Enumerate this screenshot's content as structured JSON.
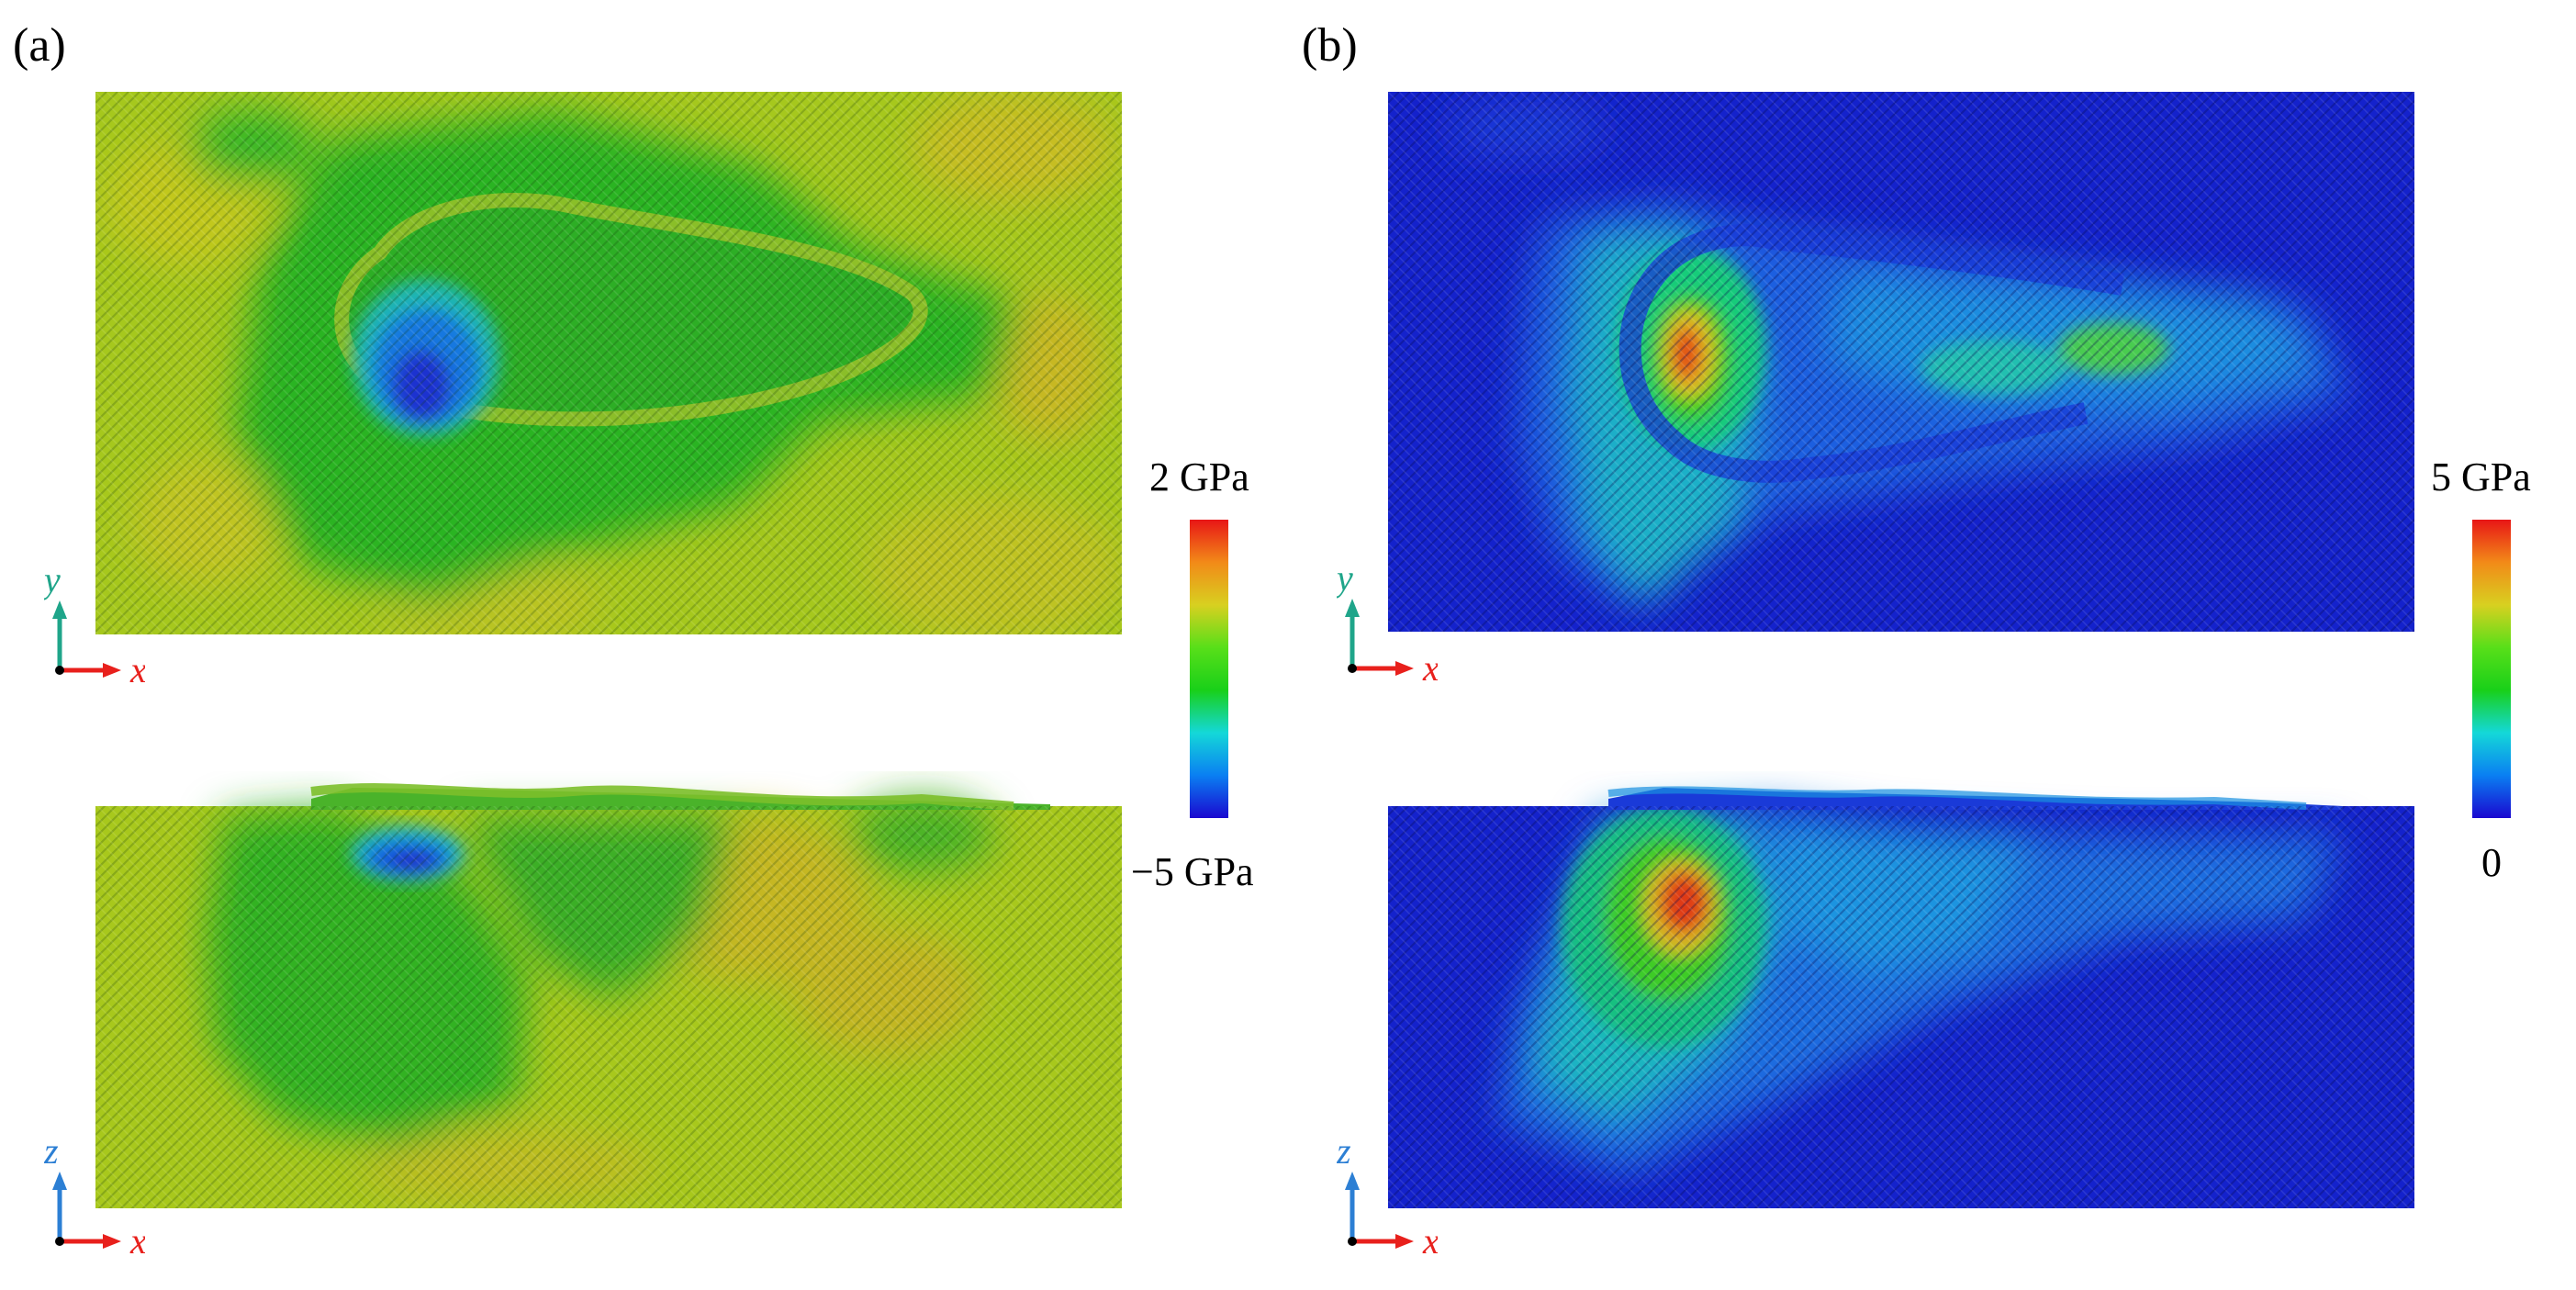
{
  "panels": [
    {
      "label": "(a)",
      "colorbar": {
        "max_label": "2 GPa",
        "min_label": "−5 GPa",
        "colors": [
          "#1a08d0",
          "#0a7ff2",
          "#14d8d8",
          "#19d019",
          "#58df19",
          "#d8d020",
          "#f28a18",
          "#e81616"
        ]
      },
      "views": [
        {
          "plane": "xy",
          "vertical_axis": "y",
          "horizontal_axis": "x"
        },
        {
          "plane": "xz",
          "vertical_axis": "z",
          "horizontal_axis": "x"
        }
      ]
    },
    {
      "label": "(b)",
      "colorbar": {
        "max_label": "5 GPa",
        "min_label": "0",
        "colors": [
          "#1a08d0",
          "#0a7ff2",
          "#14d8d8",
          "#19d019",
          "#58df19",
          "#d8d020",
          "#f28a18",
          "#e81616"
        ]
      },
      "views": [
        {
          "plane": "xy",
          "vertical_axis": "y",
          "horizontal_axis": "x"
        },
        {
          "plane": "xz",
          "vertical_axis": "z",
          "horizontal_axis": "x"
        }
      ]
    }
  ],
  "axis_colors": {
    "x": "#e8201c",
    "y": "#1fa58a",
    "z": "#2c7fd4"
  }
}
